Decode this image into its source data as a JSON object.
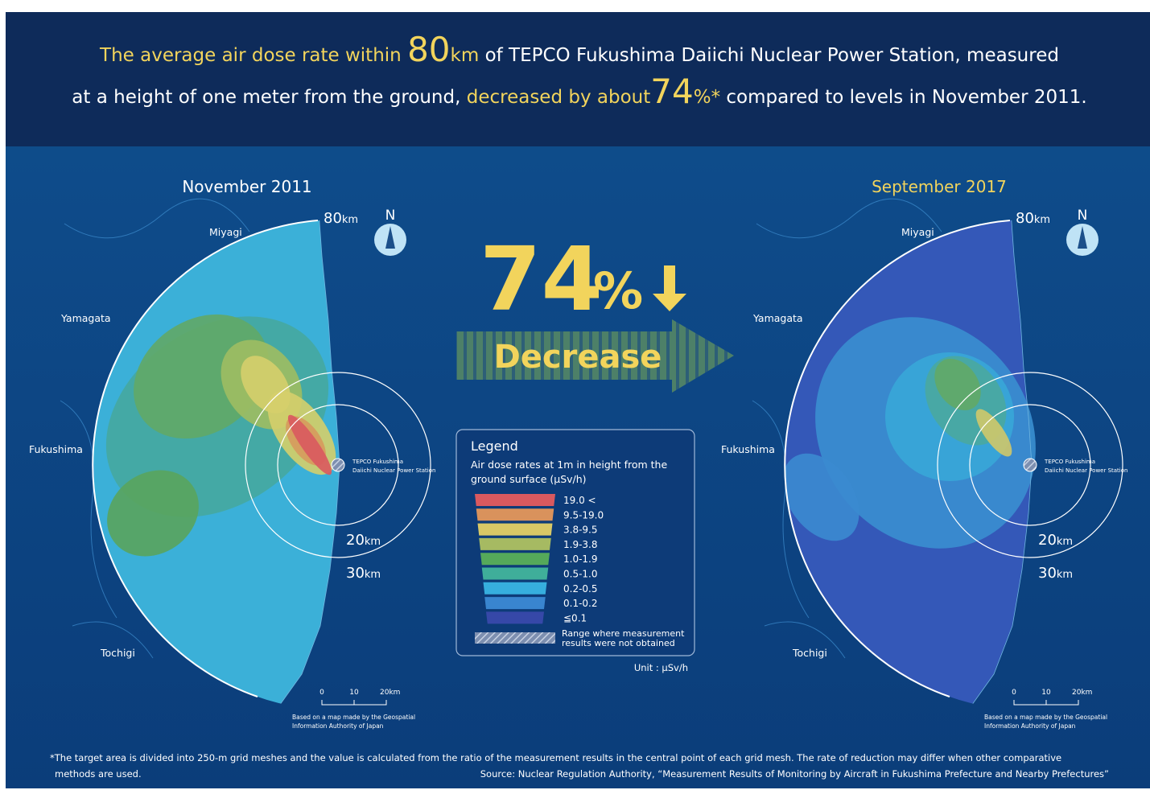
{
  "header": {
    "line1": [
      "The average air dose rate within",
      "80",
      "km",
      "of TEPCO Fukushima Daiichi Nuclear Power Station, measured"
    ],
    "line2": [
      "at a height of one meter from the ground,",
      "decreased by about",
      "74",
      "%*",
      "compared to levels in November 2011."
    ]
  },
  "center": {
    "percent": "74",
    "percent_sign": "%",
    "label": "Decrease"
  },
  "maps": [
    {
      "title": "November 2011",
      "radius_label": "80",
      "radius_unit": "km",
      "inner_label": "20",
      "inner_unit": "km",
      "outer_label": "30",
      "outer_unit": "km",
      "north": "N",
      "station": [
        "TEPCO Fukushima",
        "Daiichi Nuclear Power Station"
      ],
      "regions": [
        "Miyagi",
        "Yamagata",
        "Fukushima",
        "Tochigi"
      ],
      "scale": [
        "0",
        "10",
        "20km"
      ],
      "credit": [
        "Based on a map made by the Geospatial",
        "Information Authority of Japan"
      ]
    },
    {
      "title": "September 2017",
      "radius_label": "80",
      "radius_unit": "km",
      "inner_label": "20",
      "inner_unit": "km",
      "outer_label": "30",
      "outer_unit": "km",
      "north": "N",
      "station": [
        "TEPCO Fukushima",
        "Daiichi Nuclear Power Station"
      ],
      "regions": [
        "Miyagi",
        "Yamagata",
        "Fukushima",
        "Tochigi"
      ],
      "scale": [
        "0",
        "10",
        "20km"
      ],
      "credit": [
        "Based on a map made by the Geospatial",
        "Information Authority of Japan"
      ]
    }
  ],
  "legend": {
    "title": "Legend",
    "subtitle": [
      "Air dose rates at 1m in height from the",
      "ground surface (μSv/h)"
    ],
    "items": [
      {
        "label": "19.0 <",
        "color": "#d9595f"
      },
      {
        "label": "9.5-19.0",
        "color": "#d9925c"
      },
      {
        "label": "3.8-9.5",
        "color": "#d8c866"
      },
      {
        "label": "1.9-3.8",
        "color": "#a6ba62"
      },
      {
        "label": "1.0-1.9",
        "color": "#55a95a"
      },
      {
        "label": "0.5-1.0",
        "color": "#3fae9a"
      },
      {
        "label": "0.2-0.5",
        "color": "#36aede"
      },
      {
        "label": "0.1-0.2",
        "color": "#3985cf"
      },
      {
        "label": "≦0.1",
        "color": "#3648a8"
      }
    ],
    "not_obtained": [
      "Range where measurement",
      "results were not obtained"
    ],
    "unit": "Unit : μSv/h"
  },
  "footnote": [
    "*The target area is divided into 250-m grid meshes and the value is calculated from the ratio of the measurement results in the central point of each grid mesh. The rate of reduction may differ when other comparative",
    "methods are used."
  ],
  "source": "Source: Nuclear Regulation Authority, “Measurement Results of Monitoring by Aircraft in Fukushima Prefecture and Nearby Prefectures”"
}
